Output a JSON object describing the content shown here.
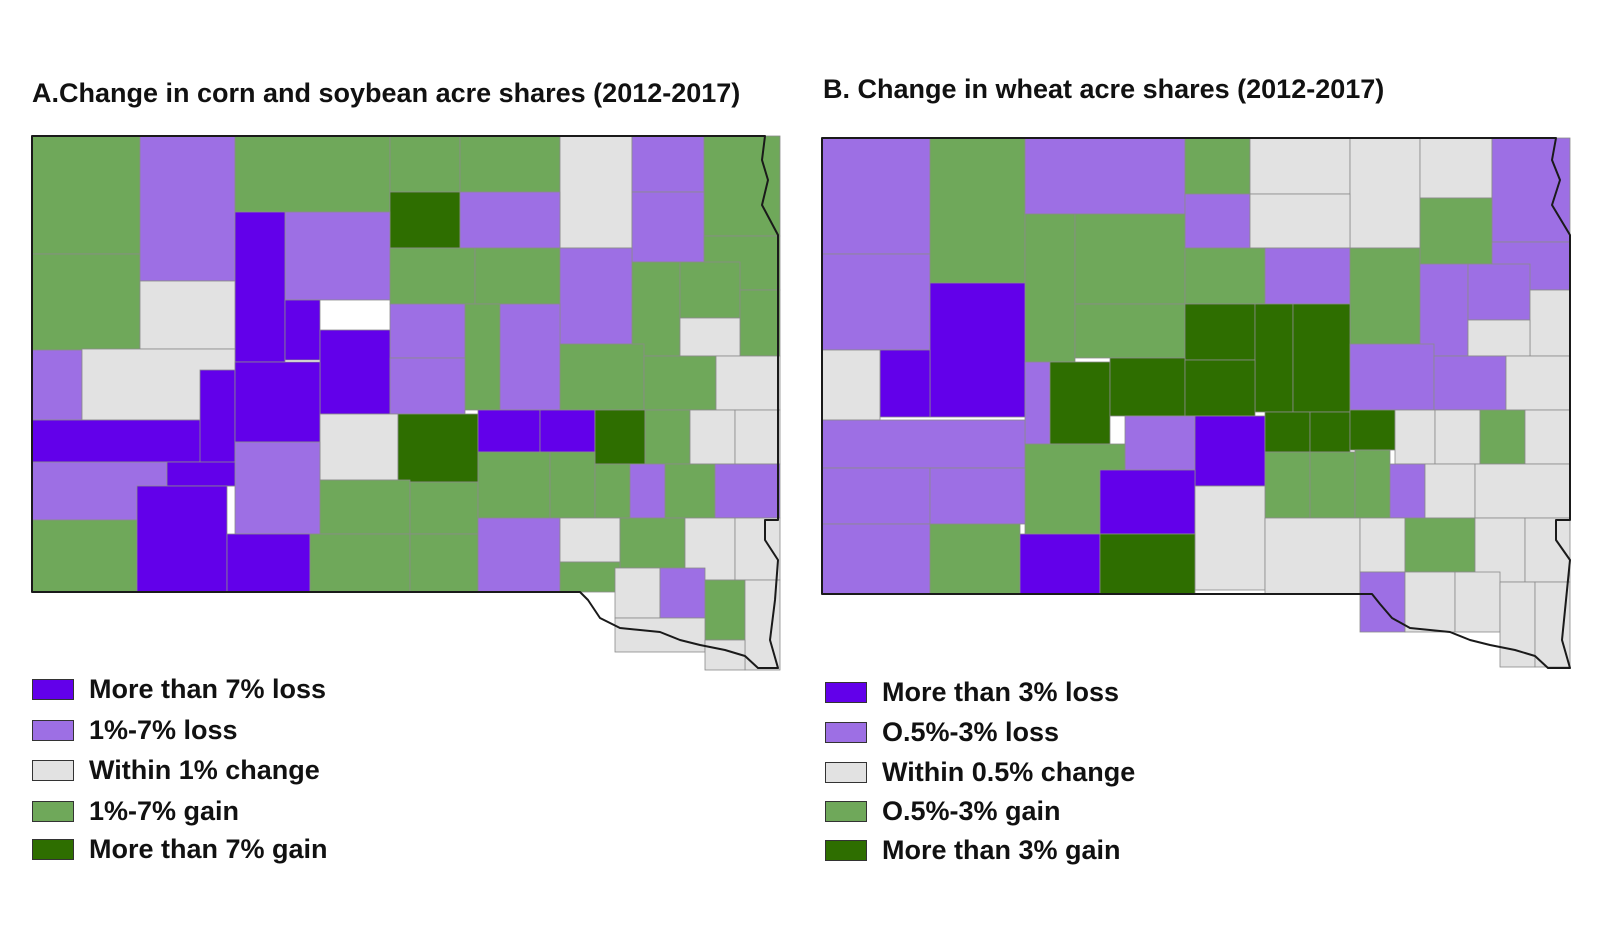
{
  "colors": {
    "strong_loss": "#6200EA",
    "loss": "#9D6FE4",
    "neutral": "#E2E2E2",
    "gain": "#6FA85A",
    "strong_gain": "#2E6E00"
  },
  "map_a": {
    "title": "A.Change in corn and soybean acre shares (2012-2017)",
    "legend": [
      {
        "label": "More than 7% loss",
        "color": "#6200EA"
      },
      {
        "label": "1%-7% loss",
        "color": "#9D6FE4"
      },
      {
        "label": "Within 1% change",
        "color": "#E2E2E2"
      },
      {
        "label": "1%-7% gain",
        "color": "#6FA85A"
      },
      {
        "label": "More than 7% gain",
        "color": "#2E6E00"
      }
    ]
  },
  "map_b": {
    "title": "B. Change in wheat acre shares (2012-2017)",
    "legend": [
      {
        "label": "More than 3% loss",
        "color": "#6200EA"
      },
      {
        "label": "O.5%-3% loss",
        "color": "#9D6FE4"
      },
      {
        "label": "Within 0.5% change",
        "color": "#E2E2E2"
      },
      {
        "label": "O.5%-3% gain",
        "color": "#6FA85A"
      },
      {
        "label": "More than 3% gain",
        "color": "#2E6E00"
      }
    ]
  }
}
